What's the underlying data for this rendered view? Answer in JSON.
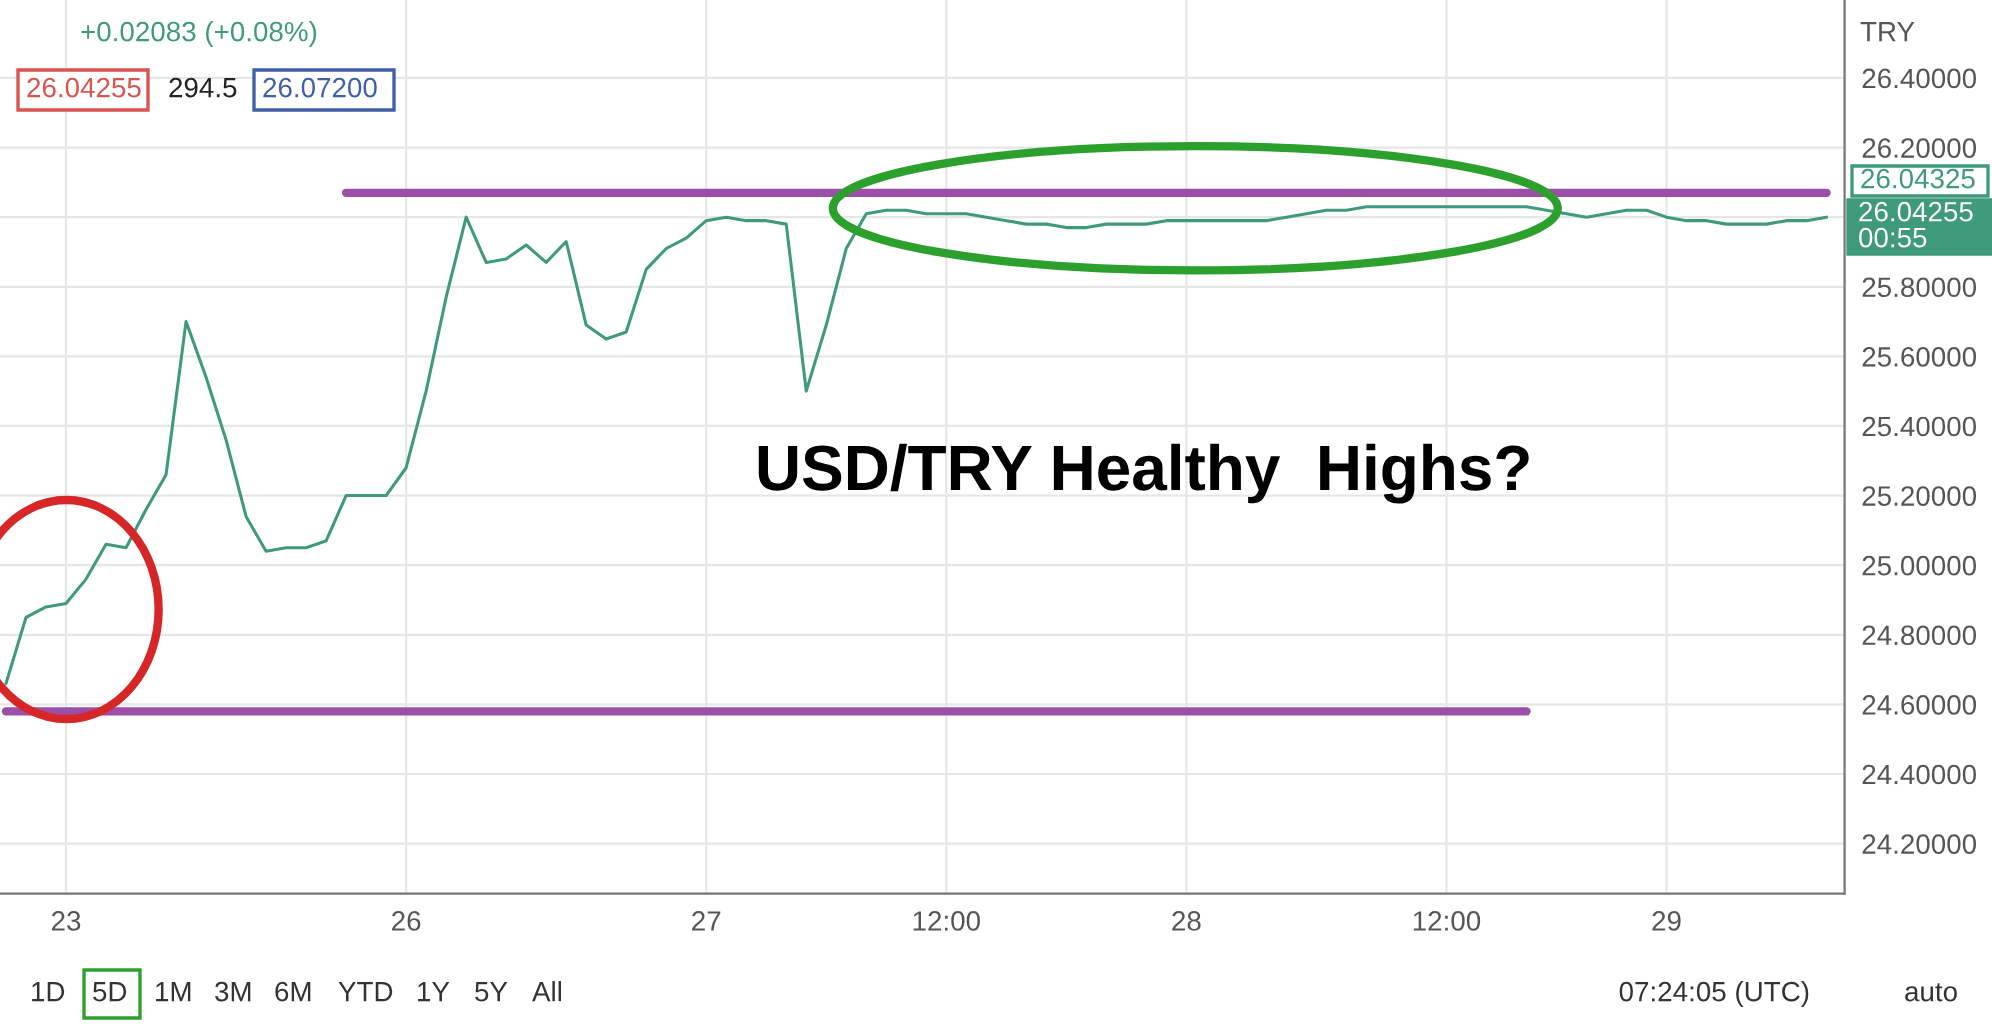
{
  "chart_data": {
    "type": "line",
    "title": "USD/TRY Healthy  Highs?",
    "categories": [
      null,
      null,
      null,
      "23",
      null,
      null,
      null,
      null,
      null,
      null,
      null,
      null,
      null,
      null,
      null,
      null,
      null,
      null,
      null,
      null,
      "26",
      null,
      null,
      null,
      null,
      null,
      null,
      null,
      null,
      null,
      null,
      null,
      null,
      null,
      null,
      "27",
      null,
      null,
      null,
      null,
      null,
      null,
      null,
      null,
      null,
      null,
      null,
      "12:00",
      null,
      null,
      null,
      null,
      null,
      null,
      null,
      null,
      null,
      null,
      null,
      "28",
      null,
      null,
      null,
      null,
      null,
      null,
      null,
      null,
      null,
      null,
      null,
      null,
      "12:00",
      null,
      null,
      null,
      null,
      null,
      null,
      null,
      null,
      null,
      null,
      "29",
      null,
      null,
      null,
      null,
      null,
      null,
      null,
      null
    ],
    "series": [
      {
        "color": "#3f9a7c",
        "values": [
          24.66,
          24.85,
          24.88,
          24.89,
          24.96,
          25.06,
          25.05,
          25.16,
          25.26,
          25.7,
          25.54,
          25.36,
          25.14,
          25.04,
          25.05,
          25.05,
          25.07,
          25.2,
          25.2,
          25.2,
          25.28,
          25.5,
          25.77,
          26.0,
          25.87,
          25.88,
          25.92,
          25.87,
          25.93,
          25.69,
          25.65,
          25.67,
          25.85,
          25.91,
          25.94,
          25.99,
          26.0,
          25.99,
          25.99,
          25.98,
          25.5,
          25.69,
          25.91,
          26.01,
          26.02,
          26.02,
          26.01,
          26.01,
          26.01,
          26.0,
          25.99,
          25.98,
          25.98,
          25.97,
          25.97,
          25.98,
          25.98,
          25.98,
          25.99,
          25.99,
          25.99,
          25.99,
          25.99,
          25.99,
          26.0,
          26.01,
          26.02,
          26.02,
          26.03,
          26.03,
          26.03,
          26.03,
          26.03,
          26.03,
          26.03,
          26.03,
          26.03,
          26.02,
          26.01,
          26.0,
          26.01,
          26.02,
          26.02,
          26.0,
          25.99,
          25.99,
          25.98,
          25.98,
          25.98,
          25.99,
          25.99,
          26.0
        ]
      },
      {
        "color": "#9c4fa8",
        "values": [
          null,
          null,
          null,
          null,
          null,
          null,
          null,
          null,
          null,
          null,
          null,
          null,
          null,
          null,
          null,
          null,
          null,
          26.07,
          26.07,
          26.07,
          26.07,
          26.07,
          26.07,
          26.07,
          26.07,
          26.07,
          26.07,
          26.07,
          26.07,
          26.07,
          26.07,
          26.07,
          26.07,
          26.07,
          26.07,
          26.07,
          26.07,
          26.07,
          26.07,
          26.07,
          26.07,
          26.07,
          26.07,
          26.07,
          26.07,
          26.07,
          26.07,
          26.07,
          26.07,
          26.07,
          26.07,
          26.07,
          26.07,
          26.07,
          26.07,
          26.07,
          26.07,
          26.07,
          26.07,
          26.07,
          26.07,
          26.07,
          26.07,
          26.07,
          26.07,
          26.07,
          26.07,
          26.07,
          26.07,
          26.07,
          26.07,
          26.07,
          26.07,
          26.07,
          26.07,
          26.07,
          26.07,
          26.07,
          26.07,
          26.07,
          26.07,
          26.07,
          26.07,
          26.07,
          26.07,
          26.07,
          26.07,
          26.07,
          26.07,
          26.07,
          26.07,
          26.07
        ]
      },
      {
        "color": "#9c4fa8",
        "values": [
          24.58,
          24.58,
          24.58,
          24.58,
          24.58,
          24.58,
          24.58,
          24.58,
          24.58,
          24.58,
          24.58,
          24.58,
          24.58,
          24.58,
          24.58,
          24.58,
          24.58,
          24.58,
          24.58,
          24.58,
          24.58,
          24.58,
          24.58,
          24.58,
          24.58,
          24.58,
          24.58,
          24.58,
          24.58,
          24.58,
          24.58,
          24.58,
          24.58,
          24.58,
          24.58,
          24.58,
          24.58,
          24.58,
          24.58,
          24.58,
          24.58,
          24.58,
          24.58,
          24.58,
          24.58,
          24.58,
          24.58,
          24.58,
          24.58,
          24.58,
          24.58,
          24.58,
          24.58,
          24.58,
          24.58,
          24.58,
          24.58,
          24.58,
          24.58,
          24.58,
          24.58,
          24.58,
          24.58,
          24.58,
          24.58,
          24.58,
          24.58,
          24.58,
          24.58,
          24.58,
          24.58,
          24.58,
          24.58,
          24.58,
          24.58,
          24.58,
          24.58,
          null,
          null,
          null,
          null,
          null,
          null,
          null,
          null,
          null,
          null,
          null,
          null,
          null,
          null,
          null
        ]
      }
    ],
    "ylim": [
      24.056,
      26.624
    ],
    "yticks": [
      {
        "value": 24.2,
        "label": "24.20000"
      },
      {
        "value": 24.4,
        "label": "24.40000"
      },
      {
        "value": 24.6,
        "label": "24.60000"
      },
      {
        "value": 24.8,
        "label": "24.80000"
      },
      {
        "value": 25.0,
        "label": "25.00000"
      },
      {
        "value": 25.2,
        "label": "25.20000"
      },
      {
        "value": 25.4,
        "label": "25.40000"
      },
      {
        "value": 25.6,
        "label": "25.60000"
      },
      {
        "value": 25.8,
        "label": "25.80000"
      },
      {
        "value": 26.0,
        "label": null
      },
      {
        "value": 26.2,
        "label": "26.20000"
      },
      {
        "value": 26.4,
        "label": "26.40000"
      }
    ],
    "grid": true,
    "annotations": [
      "+0.02083 (+0.08%)",
      "26.04255",
      "294.5",
      "26.07200",
      "TRY",
      "26.04325",
      "26.04255\n00:55",
      "1D",
      "5D",
      "1M",
      "3M",
      "6M",
      "YTD",
      "1Y",
      "5Y",
      "All",
      "07:24:05 (UTC)",
      "auto"
    ]
  }
}
